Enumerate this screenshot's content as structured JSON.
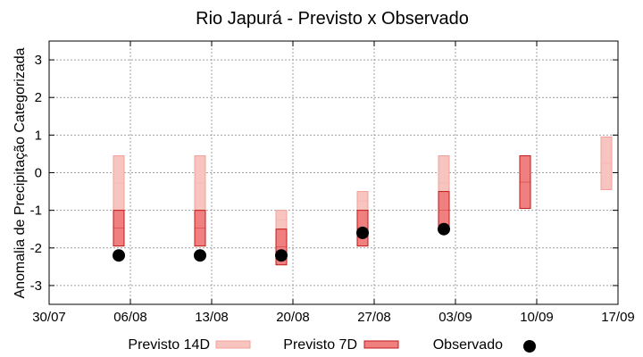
{
  "chart_data": {
    "type": "box-range",
    "title": "Rio Japurá - Previsto x Observado",
    "ylabel": "Anomalia de Precipitação Categorizada",
    "xlabel": "",
    "ylim": [
      -3.5,
      3.5
    ],
    "yticks": [
      -3,
      -2,
      -1,
      0,
      1,
      2,
      3
    ],
    "xlim": [
      "2024-07-30",
      "2024-09-17"
    ],
    "xticks": [
      {
        "date": "2024-07-30",
        "label": "30/07"
      },
      {
        "date": "2024-08-06",
        "label": "06/08"
      },
      {
        "date": "2024-08-13",
        "label": "13/08"
      },
      {
        "date": "2024-08-20",
        "label": "20/08"
      },
      {
        "date": "2024-08-27",
        "label": "27/08"
      },
      {
        "date": "2024-09-03",
        "label": "03/09"
      },
      {
        "date": "2024-09-10",
        "label": "10/09"
      },
      {
        "date": "2024-09-17",
        "label": "17/09"
      }
    ],
    "grid": true,
    "legend_position": "bottom",
    "series": [
      {
        "name": "Previsto 14D",
        "color": "#f8c4c0",
        "edge": "#f0a09a",
        "boxes": [
          {
            "date": "2024-08-05",
            "low": -1.0,
            "high": 0.45
          },
          {
            "date": "2024-08-12",
            "low": -1.0,
            "high": 0.45
          },
          {
            "date": "2024-08-19",
            "low": -1.5,
            "high": -1.0
          },
          {
            "date": "2024-08-26",
            "low": -1.0,
            "high": -0.5
          },
          {
            "date": "2024-09-02",
            "low": -1.0,
            "high": 0.45
          },
          {
            "date": "2024-09-16",
            "low": -0.45,
            "high": 0.95
          }
        ]
      },
      {
        "name": "Previsto 7D",
        "color": "#f08080",
        "edge": "#c01818",
        "boxes": [
          {
            "date": "2024-08-05",
            "low": -1.95,
            "high": -1.0
          },
          {
            "date": "2024-08-12",
            "low": -1.95,
            "high": -1.0
          },
          {
            "date": "2024-08-19",
            "low": -2.45,
            "high": -1.5
          },
          {
            "date": "2024-08-26",
            "low": -1.95,
            "high": -1.0
          },
          {
            "date": "2024-09-02",
            "low": -1.5,
            "high": -0.5
          },
          {
            "date": "2024-09-09",
            "low": -0.95,
            "high": 0.45
          }
        ]
      },
      {
        "name": "Observado",
        "color": "#000000",
        "points": [
          {
            "date": "2024-08-05",
            "value": -2.2
          },
          {
            "date": "2024-08-12",
            "value": -2.2
          },
          {
            "date": "2024-08-19",
            "value": -2.2
          },
          {
            "date": "2024-08-26",
            "value": -1.6
          },
          {
            "date": "2024-09-02",
            "value": -1.5
          }
        ]
      }
    ]
  }
}
